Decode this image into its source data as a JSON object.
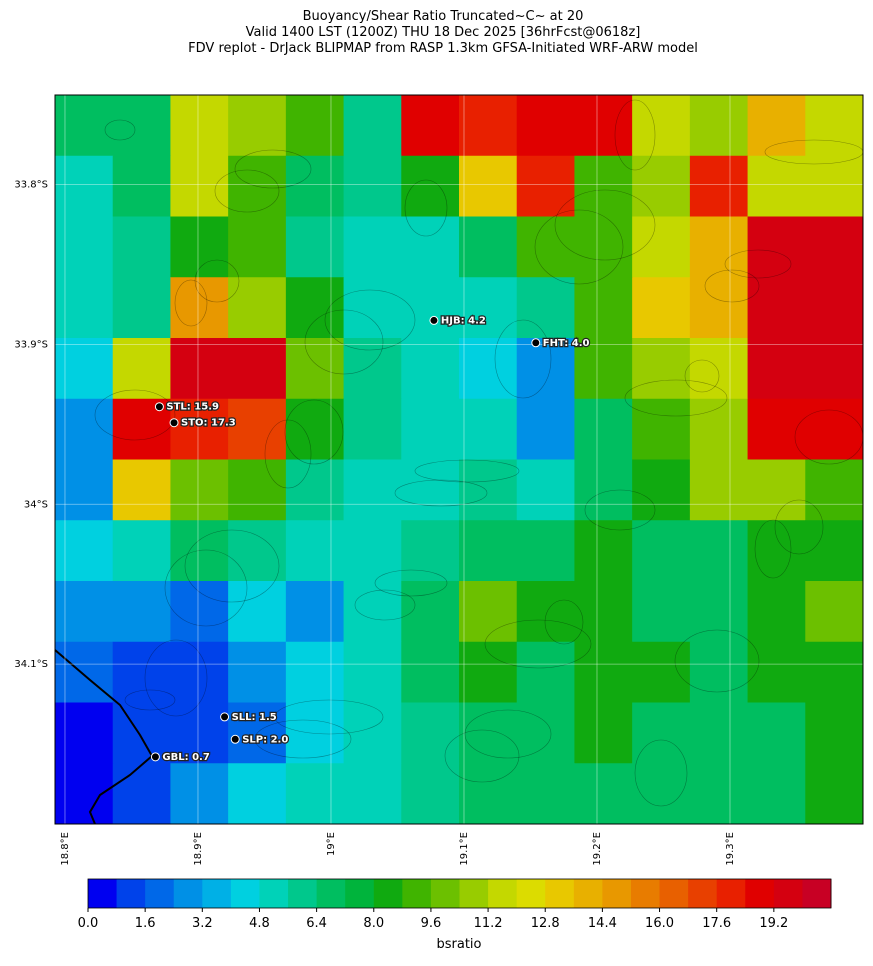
{
  "title": [
    "Buoyancy/Shear Ratio Truncated~C~    at 20",
    "Valid 1400 LST (1200Z) THU 18 Dec 2025 [36hrFcst@0618z]",
    "FDV replot - DrJack BLIPMAP from RASP 1.3km GFSA-Initiated WRF-ARW model"
  ],
  "map": {
    "lonlim": [
      18.7925,
      19.4
    ],
    "latlim": [
      33.744,
      34.2
    ],
    "lon_ticks": [
      {
        "value": 18.8,
        "label": "18.8°E"
      },
      {
        "value": 18.9,
        "label": "18.9°E"
      },
      {
        "value": 19.0,
        "label": "19°E"
      },
      {
        "value": 19.1,
        "label": "19.1°E"
      },
      {
        "value": 19.2,
        "label": "19.2°E"
      },
      {
        "value": 19.3,
        "label": "19.3°E"
      }
    ],
    "lat_ticks": [
      {
        "value": 33.8,
        "label": "33.8°S"
      },
      {
        "value": 33.9,
        "label": "33.9°S"
      },
      {
        "value": 34.0,
        "label": "34°S"
      },
      {
        "value": 34.1,
        "label": "34.1°S"
      }
    ],
    "stations": [
      {
        "label": "HJB: 4.2",
        "lon": 19.0774,
        "lat": 33.885
      },
      {
        "label": "FHT: 4.0",
        "lon": 19.154,
        "lat": 33.899
      },
      {
        "label": "STL: 15.9",
        "lon": 18.871,
        "lat": 33.939
      },
      {
        "label": "STO: 17.3",
        "lon": 18.882,
        "lat": 33.949
      },
      {
        "label": "SLL: 1.5",
        "lon": 18.92,
        "lat": 34.133
      },
      {
        "label": "SLP: 2.0",
        "lon": 18.928,
        "lat": 34.147
      },
      {
        "label": "GBL: 0.7",
        "lon": 18.868,
        "lat": 34.158
      }
    ],
    "grid": [
      [
        7,
        7,
        12,
        11,
        9,
        6,
        19,
        18,
        19,
        19,
        12,
        11,
        14,
        12
      ],
      [
        5,
        7,
        12,
        9,
        7,
        6,
        8,
        13,
        18,
        9,
        11,
        18,
        12,
        12
      ],
      [
        5,
        6,
        8,
        9,
        6,
        5,
        5,
        7,
        9,
        9,
        12,
        14,
        20,
        20
      ],
      [
        5,
        6,
        15,
        11,
        8,
        5,
        5,
        5,
        6,
        9,
        13,
        14,
        20,
        20
      ],
      [
        4,
        12,
        20,
        20,
        10,
        6,
        5,
        4,
        3,
        9,
        11,
        12,
        20,
        20
      ],
      [
        3,
        19,
        18,
        17,
        8,
        6,
        5,
        5,
        3,
        7,
        9,
        11,
        19,
        19
      ],
      [
        3,
        13,
        10,
        9,
        6,
        5,
        5,
        6,
        5,
        7,
        8,
        11,
        11,
        9
      ],
      [
        4,
        5,
        7,
        6,
        5,
        5,
        6,
        7,
        7,
        8,
        7,
        7,
        8,
        8
      ],
      [
        3,
        3,
        2,
        4,
        3,
        5,
        7,
        10,
        8,
        8,
        7,
        7,
        8,
        10
      ],
      [
        2,
        1,
        1,
        3,
        4,
        5,
        7,
        8,
        7,
        8,
        8,
        7,
        8,
        8
      ],
      [
        0,
        1,
        1,
        2,
        4,
        5,
        6,
        7,
        7,
        8,
        7,
        7,
        7,
        8
      ],
      [
        0,
        1,
        3,
        4,
        5,
        5,
        6,
        7,
        7,
        7,
        7,
        7,
        7,
        8
      ]
    ]
  },
  "colorbar": {
    "label": "bsratio",
    "lim": [
      0,
      20.8
    ],
    "colors": [
      "#0000f0",
      "#0042ea",
      "#0068e8",
      "#0090e6",
      "#00b0e6",
      "#00d0e0",
      "#00d2b8",
      "#00c88c",
      "#00be60",
      "#00b43c",
      "#10aa10",
      "#40b400",
      "#6cc000",
      "#98cc00",
      "#c4d800",
      "#dcdc00",
      "#e8c800",
      "#e8b000",
      "#e89800",
      "#e87c00",
      "#e86000",
      "#e84000",
      "#e82000",
      "#e00000",
      "#d40010",
      "#c80024"
    ],
    "ticks": [
      {
        "value": 0,
        "label": "0.0"
      },
      1.6,
      3.2,
      4.8,
      6.4,
      {
        "value": 8,
        "label": "8.0"
      },
      9.6,
      11.2,
      12.8,
      14.4,
      {
        "value": 16,
        "label": "16.0"
      },
      17.6,
      19.2
    ]
  }
}
